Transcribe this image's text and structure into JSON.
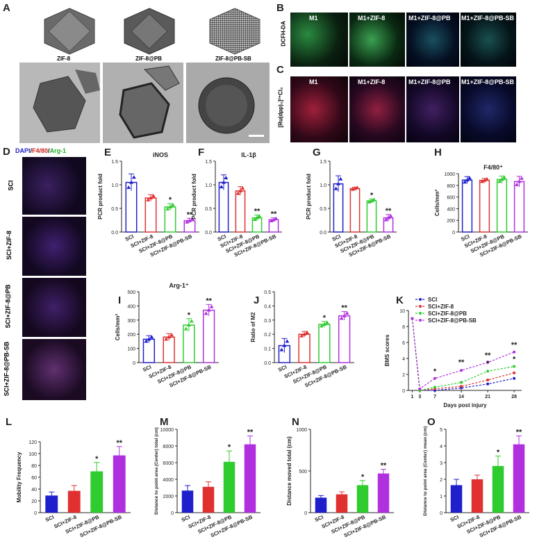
{
  "panels": {
    "A": {
      "letter": "A",
      "labels": [
        "ZIF-8",
        "ZIF-8@PB",
        "ZIF-8@PB-SB"
      ]
    },
    "B": {
      "letter": "B",
      "ylabel": "DCFH-DA",
      "labels": [
        "M1",
        "M1+ZIF-8",
        "M1+ZIF-8@PB",
        "M1+ZIF-8@PB-SB"
      ]
    },
    "C": {
      "letter": "C",
      "ylabel": "[Ru(dpp)₃]²⁺Cl₂",
      "labels": [
        "M1",
        "M1+ZIF-8",
        "M1+ZIF-8@PB",
        "M1+ZIF-8@PB-SB"
      ]
    },
    "D": {
      "letter": "D",
      "stain_dapi": "DAPI",
      "stain_sep1": "/",
      "stain_f480": "F4/80",
      "stain_sep2": "/",
      "stain_arg": "Arg-1",
      "rows": [
        "SCI",
        "SCI+ZIF-8",
        "SCI+ZIF-8@PB",
        "SCI+ZIF-8@PB-SB"
      ]
    }
  },
  "colors": {
    "SCI": "#1f1fcc",
    "ZIF8": "#e03030",
    "PB": "#2ecc2e",
    "PBSB": "#b030e0"
  },
  "groups": [
    "SCI",
    "SCI+ZIF-8",
    "SCI+ZIF-8@PB",
    "SCI+ZIF-8@PB-SB"
  ],
  "chart_data": [
    {
      "id": "E",
      "letter": "E",
      "type": "bar",
      "style": "hollow",
      "title": "iNOS",
      "ylabel": "PCR product fold",
      "ylim": [
        0,
        1.5
      ],
      "yticks": [
        "0.0",
        "0.5",
        "1.0",
        "1.5"
      ],
      "tickvals": [
        0,
        0.5,
        1.0,
        1.5
      ],
      "values": [
        1.05,
        0.72,
        0.53,
        0.24
      ],
      "errors": [
        0.18,
        0.07,
        0.07,
        0.05
      ],
      "sig": [
        "",
        "",
        "*",
        "**"
      ]
    },
    {
      "id": "F",
      "letter": "F",
      "type": "bar",
      "style": "hollow",
      "title": "IL-1β",
      "ylabel": "PCR product fold",
      "ylim": [
        0,
        1.5
      ],
      "yticks": [
        "0.0",
        "0.5",
        "1.0",
        "1.5"
      ],
      "tickvals": [
        0,
        0.5,
        1.0,
        1.5
      ],
      "values": [
        1.05,
        0.87,
        0.3,
        0.26
      ],
      "errors": [
        0.16,
        0.09,
        0.06,
        0.04
      ],
      "sig": [
        "",
        "",
        "**",
        "**"
      ]
    },
    {
      "id": "G",
      "letter": "G",
      "type": "bar",
      "style": "hollow",
      "title": "",
      "ylabel": "PCR product fold",
      "ylim": [
        0,
        1.5
      ],
      "yticks": [
        "0.0",
        "0.5",
        "1.0",
        "1.5"
      ],
      "tickvals": [
        0,
        0.5,
        1.0,
        1.5
      ],
      "values": [
        1.02,
        0.92,
        0.66,
        0.3
      ],
      "errors": [
        0.17,
        0.03,
        0.04,
        0.07
      ],
      "sig": [
        "",
        "",
        "*",
        "**"
      ]
    },
    {
      "id": "H",
      "letter": "H",
      "type": "bar",
      "style": "hollow",
      "title": "F4/80⁺",
      "ylabel": "Cells/mm²",
      "ylim": [
        0,
        1000
      ],
      "yticks": [
        "0",
        "200",
        "400",
        "600",
        "800",
        "1000"
      ],
      "tickvals": [
        0,
        200,
        400,
        600,
        800,
        1000
      ],
      "values": [
        890,
        885,
        900,
        865
      ],
      "errors": [
        60,
        35,
        60,
        90
      ],
      "sig": [
        "",
        "",
        "",
        ""
      ]
    },
    {
      "id": "I",
      "letter": "I",
      "type": "bar",
      "style": "hollow",
      "title": "Arg-1⁺",
      "ylabel": "Cells/mm²",
      "ylim": [
        0,
        500
      ],
      "yticks": [
        "0",
        "100",
        "200",
        "300",
        "400",
        "500"
      ],
      "tickvals": [
        0,
        100,
        200,
        300,
        400,
        500
      ],
      "values": [
        165,
        180,
        265,
        370
      ],
      "errors": [
        25,
        25,
        45,
        40
      ],
      "sig": [
        "",
        "",
        "*",
        "**"
      ]
    },
    {
      "id": "J",
      "letter": "J",
      "type": "bar",
      "style": "hollow",
      "title": "",
      "ylabel": "Ratio of M2",
      "ylim": [
        0,
        0.5
      ],
      "yticks": [
        "0.0",
        "0.1",
        "0.2",
        "0.3",
        "0.4",
        "0.5"
      ],
      "tickvals": [
        0,
        0.1,
        0.2,
        0.3,
        0.4,
        0.5
      ],
      "values": [
        0.12,
        0.2,
        0.27,
        0.33
      ],
      "errors": [
        0.05,
        0.02,
        0.02,
        0.03
      ],
      "sig": [
        "",
        "",
        "*",
        "**"
      ]
    },
    {
      "id": "L",
      "letter": "L",
      "type": "bar",
      "style": "solid",
      "title": "",
      "ylabel": "Mobility Frequency",
      "ylim": [
        0,
        120
      ],
      "yticks": [
        "0",
        "20",
        "40",
        "60",
        "80",
        "100",
        "120"
      ],
      "tickvals": [
        0,
        20,
        40,
        60,
        80,
        100,
        120
      ],
      "values": [
        29,
        37,
        70,
        97
      ],
      "errors": [
        6,
        9,
        15,
        15
      ],
      "sig": [
        "",
        "",
        "*",
        "**"
      ]
    },
    {
      "id": "M",
      "letter": "M",
      "type": "bar",
      "style": "solid",
      "title": "",
      "ylabel": "Distance to point area (Center) total (cm)",
      "ylim": [
        0,
        10000
      ],
      "yticks": [
        "0",
        "2000",
        "4000",
        "6000",
        "8000",
        "10000"
      ],
      "tickvals": [
        0,
        2000,
        4000,
        6000,
        8000,
        10000
      ],
      "values": [
        2650,
        3100,
        6100,
        8200
      ],
      "errors": [
        600,
        600,
        1300,
        1000
      ],
      "sig": [
        "",
        "",
        "*",
        "**"
      ]
    },
    {
      "id": "N",
      "letter": "N",
      "type": "bar",
      "style": "solid",
      "title": "",
      "ylabel": "Distance moved total (cm)",
      "ylim": [
        0,
        1000
      ],
      "yticks": [
        "0",
        "500",
        "1000"
      ],
      "tickvals": [
        0,
        500,
        1000
      ],
      "values": [
        180,
        220,
        330,
        470
      ],
      "errors": [
        25,
        30,
        55,
        50
      ],
      "sig": [
        "",
        "",
        "*",
        "**"
      ]
    },
    {
      "id": "O",
      "letter": "O",
      "type": "bar",
      "style": "solid",
      "title": "",
      "ylabel": "Distance to point area (Center) mean (cm)",
      "ylim": [
        0,
        5
      ],
      "yticks": [
        "0",
        "1",
        "2",
        "3",
        "4",
        "5"
      ],
      "tickvals": [
        0,
        1,
        2,
        3,
        4,
        5
      ],
      "values": [
        1.65,
        2.0,
        2.8,
        4.1
      ],
      "errors": [
        0.35,
        0.25,
        0.6,
        0.5
      ],
      "sig": [
        "",
        "",
        "*",
        "**"
      ]
    },
    {
      "id": "K",
      "letter": "K",
      "type": "line",
      "title": "",
      "xlabel": "Days post injury",
      "ylabel": "BMS scores",
      "ylim": [
        0,
        10
      ],
      "yticks": [
        "0",
        "2",
        "4",
        "6",
        "8",
        "10"
      ],
      "tickvals": [
        0,
        2,
        4,
        6,
        8,
        10
      ],
      "x": [
        1,
        3,
        7,
        14,
        21,
        28
      ],
      "xticks": [
        "1",
        "3",
        "7",
        "14",
        "21",
        "28"
      ],
      "series": [
        {
          "name": "SCI",
          "values": [
            9,
            0,
            0,
            0.3,
            0.8,
            1.5
          ]
        },
        {
          "name": "SCI+ZIF-8",
          "values": [
            9,
            0,
            0.2,
            0.5,
            1.3,
            2.2
          ]
        },
        {
          "name": "SCI+ZIF-8@PB",
          "values": [
            9,
            0,
            0.4,
            1.0,
            2.4,
            3.0
          ]
        },
        {
          "name": "SCI+ZIF-8@PB-SB",
          "values": [
            9,
            0.2,
            1.5,
            2.5,
            3.5,
            4.8
          ]
        }
      ],
      "sig": [
        {
          "x": 7,
          "y": 2.1,
          "t": "*"
        },
        {
          "x": 14,
          "y": 3.2,
          "t": "**"
        },
        {
          "x": 21,
          "y": 4.1,
          "t": "**"
        },
        {
          "x": 21,
          "y": 3.1,
          "t": "*"
        },
        {
          "x": 28,
          "y": 5.4,
          "t": "**"
        },
        {
          "x": 28,
          "y": 3.6,
          "t": "*"
        }
      ]
    }
  ]
}
